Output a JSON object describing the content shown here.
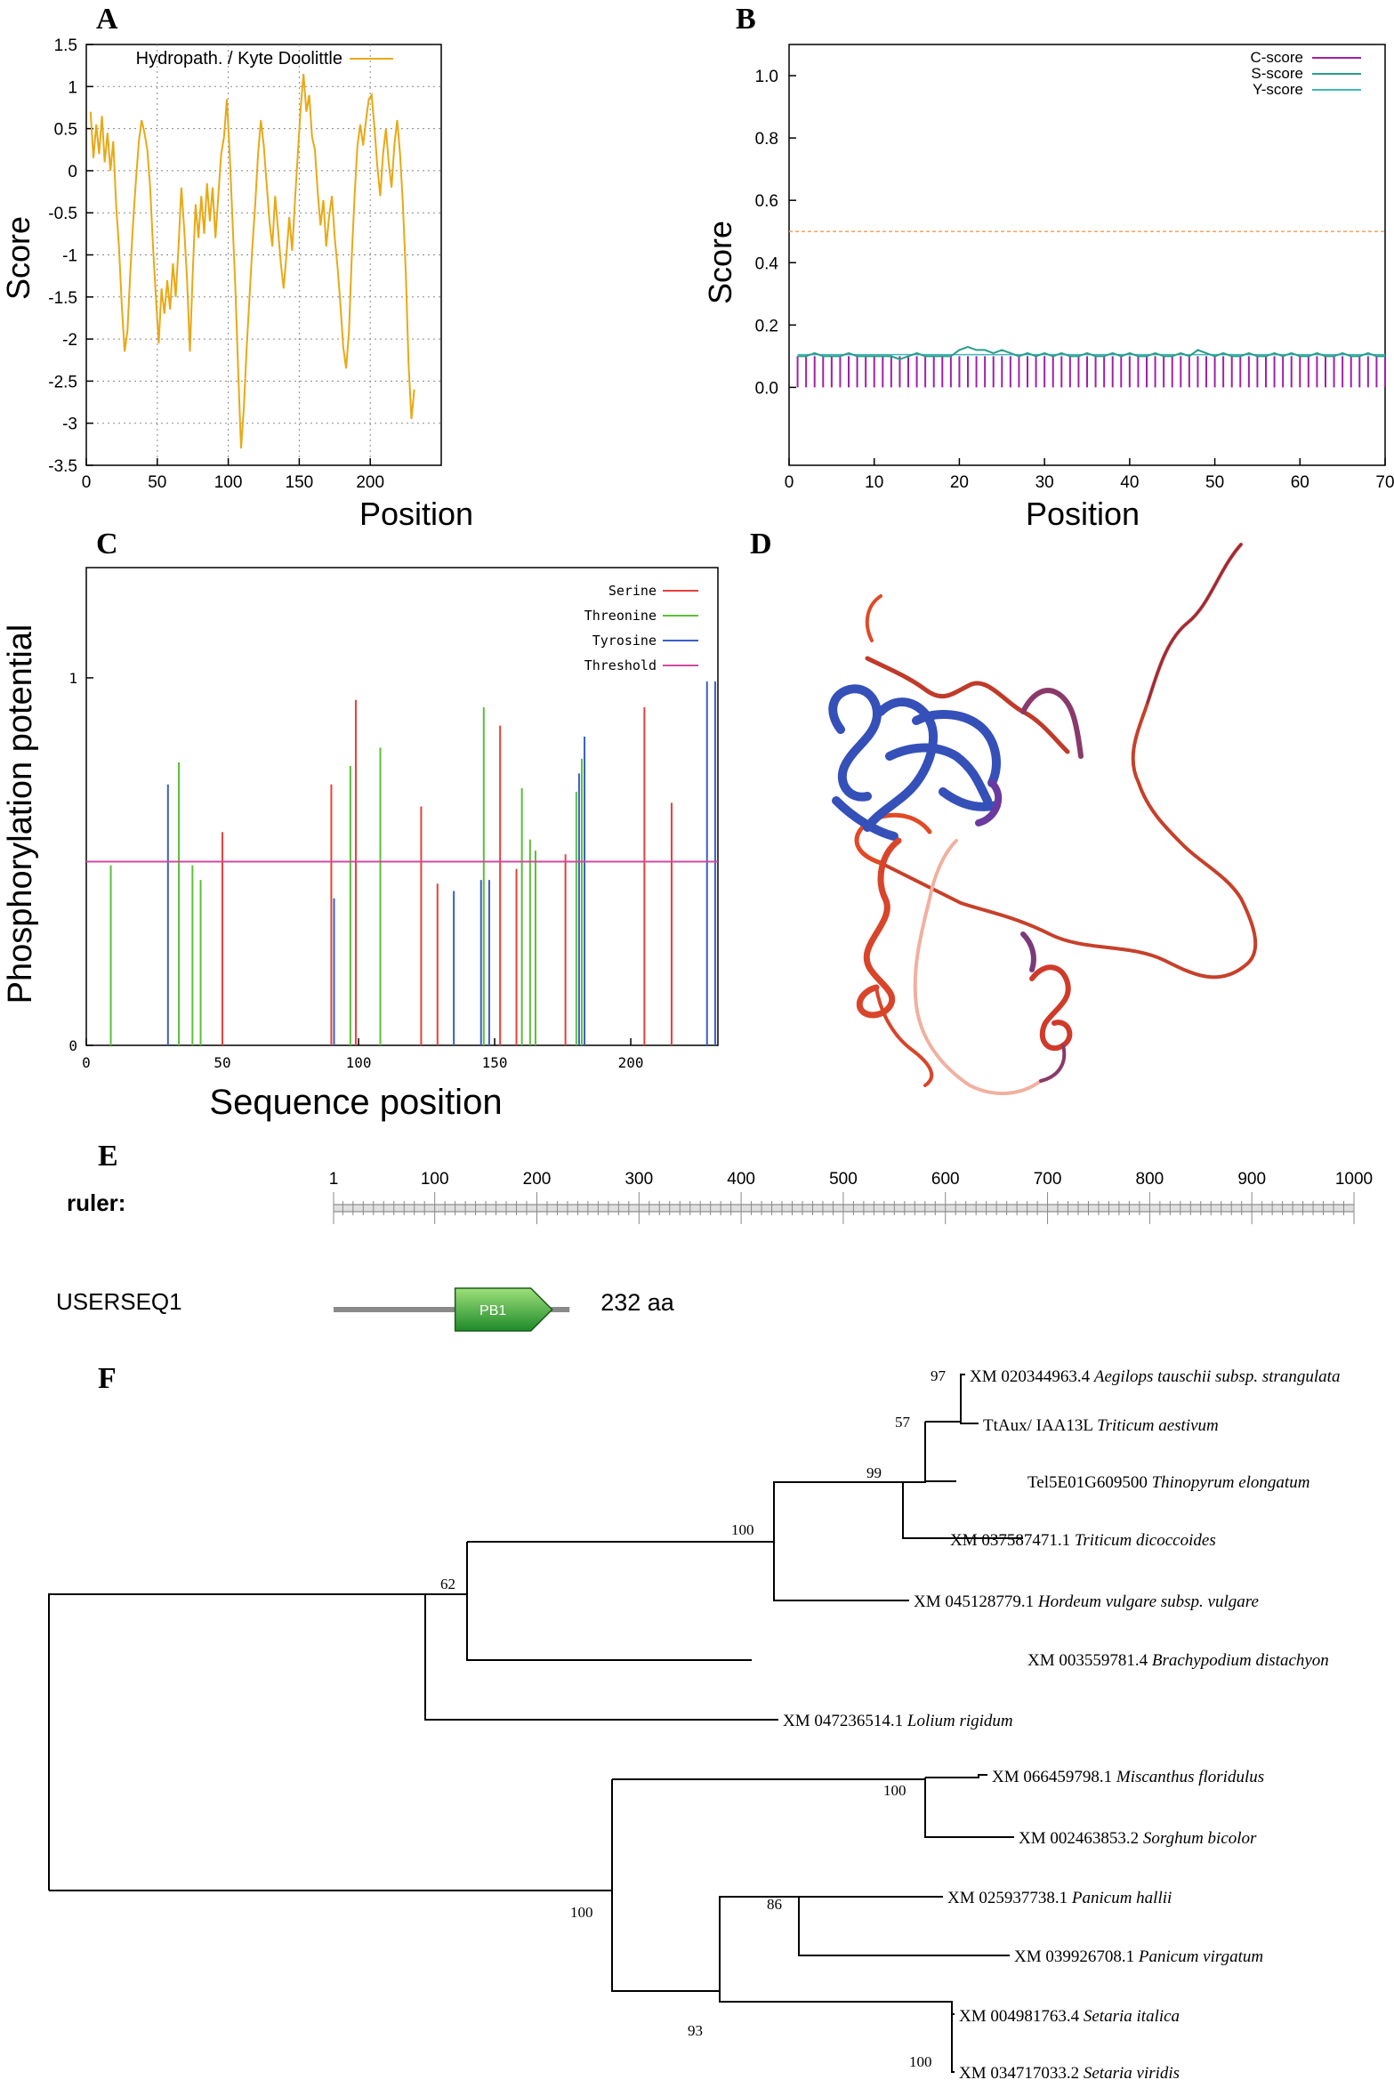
{
  "panel_labels": {
    "a": "A",
    "b": "B",
    "c": "C",
    "d": "D",
    "e": "E",
    "f": "F"
  },
  "chart_data": [
    {
      "id": "A",
      "type": "line",
      "legend": "Hydropath. / Kyte  Doolittle",
      "xlabel": "Position",
      "ylabel": "Score",
      "xlim": [
        0,
        250
      ],
      "ylim": [
        -3.5,
        1.5
      ],
      "xticks": [
        "0",
        "50",
        "100",
        "150",
        "200"
      ],
      "yticks": [
        "1.5",
        "1",
        "0.5",
        "0",
        "-0.5",
        "-1",
        "-1.5",
        "-2",
        "-2.5",
        "-3",
        "-3.5"
      ],
      "color": "#e8a917",
      "series": [
        [
          3,
          0.7
        ],
        [
          5,
          0.15
        ],
        [
          7,
          0.55
        ],
        [
          9,
          0.2
        ],
        [
          11,
          0.65
        ],
        [
          13,
          0.1
        ],
        [
          15,
          0.45
        ],
        [
          17,
          0.0
        ],
        [
          19,
          0.35
        ],
        [
          21,
          -0.4
        ],
        [
          23,
          -0.9
        ],
        [
          25,
          -1.6
        ],
        [
          27,
          -2.15
        ],
        [
          29,
          -1.9
        ],
        [
          31,
          -1.2
        ],
        [
          33,
          -0.6
        ],
        [
          35,
          -0.1
        ],
        [
          37,
          0.35
        ],
        [
          39,
          0.6
        ],
        [
          41,
          0.45
        ],
        [
          43,
          0.25
        ],
        [
          45,
          -0.2
        ],
        [
          47,
          -0.9
        ],
        [
          49,
          -1.5
        ],
        [
          51,
          -2.05
        ],
        [
          53,
          -1.4
        ],
        [
          55,
          -1.7
        ],
        [
          57,
          -1.3
        ],
        [
          59,
          -1.65
        ],
        [
          61,
          -1.1
        ],
        [
          63,
          -1.5
        ],
        [
          65,
          -0.9
        ],
        [
          67,
          -0.2
        ],
        [
          69,
          -0.7
        ],
        [
          71,
          -1.3
        ],
        [
          73,
          -2.15
        ],
        [
          75,
          -1.2
        ],
        [
          77,
          -0.4
        ],
        [
          79,
          -0.8
        ],
        [
          81,
          -0.3
        ],
        [
          83,
          -0.75
        ],
        [
          85,
          -0.15
        ],
        [
          87,
          -0.6
        ],
        [
          89,
          -0.2
        ],
        [
          91,
          -0.8
        ],
        [
          93,
          -0.3
        ],
        [
          95,
          0.2
        ],
        [
          97,
          0.4
        ],
        [
          99,
          0.85
        ],
        [
          101,
          0.2
        ],
        [
          103,
          -0.6
        ],
        [
          105,
          -1.4
        ],
        [
          107,
          -2.4
        ],
        [
          109,
          -3.3
        ],
        [
          111,
          -2.8
        ],
        [
          113,
          -2.1
        ],
        [
          115,
          -1.5
        ],
        [
          117,
          -0.9
        ],
        [
          119,
          -0.4
        ],
        [
          121,
          0.2
        ],
        [
          123,
          0.6
        ],
        [
          125,
          0.3
        ],
        [
          127,
          -0.15
        ],
        [
          129,
          -0.6
        ],
        [
          131,
          -0.9
        ],
        [
          133,
          -0.3
        ],
        [
          135,
          -0.7
        ],
        [
          137,
          -1.1
        ],
        [
          139,
          -1.4
        ],
        [
          141,
          -1.0
        ],
        [
          143,
          -0.55
        ],
        [
          145,
          -0.95
        ],
        [
          147,
          -0.35
        ],
        [
          149,
          0.2
        ],
        [
          151,
          0.75
        ],
        [
          153,
          1.15
        ],
        [
          155,
          0.7
        ],
        [
          157,
          0.9
        ],
        [
          159,
          0.4
        ],
        [
          161,
          0.25
        ],
        [
          163,
          -0.25
        ],
        [
          165,
          -0.65
        ],
        [
          167,
          -0.35
        ],
        [
          169,
          -0.9
        ],
        [
          171,
          -0.55
        ],
        [
          173,
          -0.3
        ],
        [
          175,
          -0.8
        ],
        [
          177,
          -1.15
        ],
        [
          179,
          -1.6
        ],
        [
          181,
          -2.1
        ],
        [
          183,
          -2.35
        ],
        [
          185,
          -1.9
        ],
        [
          187,
          -1.0
        ],
        [
          189,
          -0.3
        ],
        [
          191,
          0.3
        ],
        [
          193,
          0.55
        ],
        [
          195,
          0.3
        ],
        [
          197,
          0.6
        ],
        [
          199,
          0.85
        ],
        [
          201,
          0.9
        ],
        [
          203,
          0.5
        ],
        [
          205,
          0.05
        ],
        [
          207,
          -0.3
        ],
        [
          209,
          0.2
        ],
        [
          211,
          0.5
        ],
        [
          213,
          0.1
        ],
        [
          215,
          -0.2
        ],
        [
          217,
          0.3
        ],
        [
          219,
          0.6
        ],
        [
          221,
          0.2
        ],
        [
          223,
          -0.4
        ],
        [
          225,
          -1.2
        ],
        [
          227,
          -2.3
        ],
        [
          229,
          -2.95
        ],
        [
          231,
          -2.6
        ]
      ]
    },
    {
      "id": "B",
      "type": "line",
      "xlabel": "Position",
      "ylabel": "Score",
      "xlim": [
        0,
        70
      ],
      "ylim": [
        -0.25,
        1.1
      ],
      "xticks": [
        "0",
        "10",
        "20",
        "30",
        "40",
        "50",
        "60",
        "70"
      ],
      "yticks": [
        "1.0",
        "0.8",
        "0.6",
        "0.4",
        "0.2",
        "0.0"
      ],
      "threshold": 0.5,
      "legend": [
        "C-score",
        "S-score",
        "Y-score"
      ],
      "colors": {
        "c": "#a020a8",
        "s": "#2a9d8a",
        "y": "#3fb8b8",
        "threshold": "#f4a460"
      },
      "c_score": 0.1,
      "s_score": [
        0.1,
        0.1,
        0.11,
        0.1,
        0.1,
        0.1,
        0.11,
        0.1,
        0.1,
        0.1,
        0.1,
        0.1,
        0.09,
        0.1,
        0.11,
        0.1,
        0.1,
        0.1,
        0.1,
        0.12,
        0.13,
        0.12,
        0.12,
        0.11,
        0.12,
        0.11,
        0.1,
        0.11,
        0.1,
        0.11,
        0.1,
        0.11,
        0.1,
        0.1,
        0.11,
        0.1,
        0.1,
        0.11,
        0.1,
        0.11,
        0.1,
        0.1,
        0.11,
        0.1,
        0.1,
        0.11,
        0.1,
        0.12,
        0.11,
        0.1,
        0.11,
        0.1,
        0.1,
        0.11,
        0.1,
        0.1,
        0.11,
        0.1,
        0.11,
        0.1,
        0.1,
        0.11,
        0.1,
        0.1,
        0.11,
        0.1,
        0.1,
        0.11,
        0.1,
        0.1
      ],
      "y_score": 0.105
    },
    {
      "id": "C",
      "type": "bar",
      "xlabel": "Sequence position",
      "ylabel": "Phosphorylation potential",
      "xlim": [
        0,
        232
      ],
      "ylim": [
        0,
        1.3
      ],
      "xticks": [
        "0",
        "50",
        "100",
        "150",
        "200"
      ],
      "yticks": [
        "1",
        "0"
      ],
      "threshold": 0.5,
      "legend": [
        "Serine",
        "Threonine",
        "Tyrosine",
        "Threshold"
      ],
      "colors": {
        "serine": "#e8403a",
        "threonine": "#5bbf3a",
        "tyrosine": "#3a5ec8",
        "threshold": "#d04aa0"
      },
      "serine": [
        [
          50,
          0.58
        ],
        [
          90,
          0.71
        ],
        [
          99,
          0.94
        ],
        [
          123,
          0.65
        ],
        [
          129,
          0.44
        ],
        [
          152,
          0.87
        ],
        [
          158,
          0.48
        ],
        [
          176,
          0.52
        ],
        [
          205,
          0.92
        ],
        [
          215,
          0.66
        ]
      ],
      "threonine": [
        [
          9,
          0.49
        ],
        [
          34,
          0.77
        ],
        [
          39,
          0.49
        ],
        [
          42,
          0.45
        ],
        [
          97,
          0.76
        ],
        [
          108,
          0.81
        ],
        [
          146,
          0.92
        ],
        [
          160,
          0.7
        ],
        [
          163,
          0.56
        ],
        [
          165,
          0.53
        ],
        [
          180,
          0.69
        ],
        [
          182,
          0.78
        ]
      ],
      "tyrosine": [
        [
          30,
          0.71
        ],
        [
          91,
          0.4
        ],
        [
          135,
          0.42
        ],
        [
          145,
          0.45
        ],
        [
          148,
          0.45
        ],
        [
          181,
          0.74
        ],
        [
          183,
          0.84
        ],
        [
          228,
          0.99
        ],
        [
          231,
          0.99
        ]
      ]
    }
  ],
  "panel_e": {
    "ruler_label": "ruler:",
    "ruler_ticks": [
      "1",
      "100",
      "200",
      "300",
      "400",
      "500",
      "600",
      "700",
      "800",
      "900",
      "1000"
    ],
    "sequence_name": "USERSEQ1",
    "domain_label": "PB1",
    "length_text": "232 aa",
    "sequence_length": 232,
    "domain_range": [
      120,
      215
    ]
  },
  "panel_f": {
    "taxa": [
      {
        "acc": "XM 020344963.4",
        "sp": "Aegilops tauschii subsp. strangulata"
      },
      {
        "acc": "TtAux/ IAA13L",
        "sp": "Triticum aestivum"
      },
      {
        "acc": "Tel5E01G609500",
        "sp": "Thinopyrum elongatum"
      },
      {
        "acc": "XM 037587471.1",
        "sp": "Triticum dicoccoides"
      },
      {
        "acc": "XM 045128779.1",
        "sp": "Hordeum vulgare subsp. vulgare"
      },
      {
        "acc": "XM 003559781.4",
        "sp": "Brachypodium distachyon"
      },
      {
        "acc": "XM 047236514.1",
        "sp": "Lolium rigidum"
      },
      {
        "acc": "XM 066459798.1",
        "sp": "Miscanthus floridulus"
      },
      {
        "acc": "XM 002463853.2",
        "sp": "Sorghum bicolor"
      },
      {
        "acc": "XM 025937738.1",
        "sp": "Panicum hallii"
      },
      {
        "acc": "XM 039926708.1",
        "sp": "Panicum virgatum"
      },
      {
        "acc": "XM 004981763.4",
        "sp": "Setaria italica"
      },
      {
        "acc": "XM 034717033.2",
        "sp": "Setaria viridis"
      }
    ],
    "bootstrap": [
      "97",
      "57",
      "99",
      "100",
      "62",
      "100",
      "86",
      "100",
      "93",
      "100"
    ]
  }
}
